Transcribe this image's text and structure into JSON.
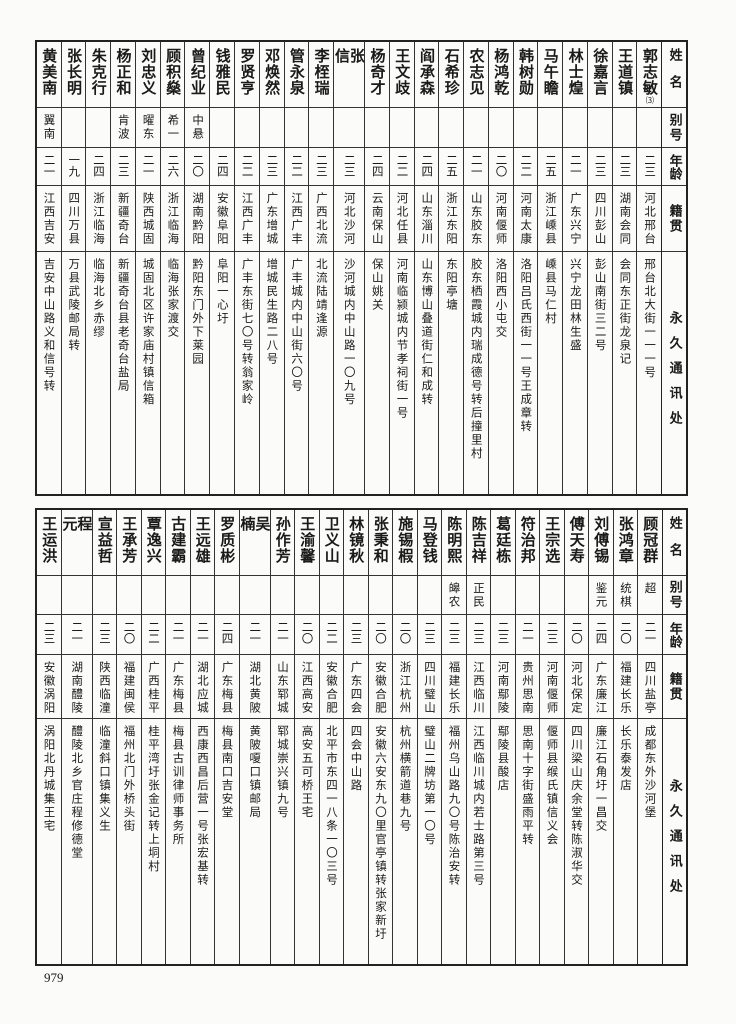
{
  "headers": {
    "name": "姓名",
    "alias": "别号",
    "age": "年龄",
    "origin": "籍贯",
    "address": "永久通讯处"
  },
  "top": [
    {
      "name": "郭志敏",
      "note": "⑶",
      "alias": "",
      "age": "二三",
      "origin": "河北邢台",
      "address": "邢台北大街一一一号"
    },
    {
      "name": "王道镇",
      "alias": "",
      "age": "二三",
      "origin": "湖南会同",
      "address": "会同东正街龙泉记"
    },
    {
      "name": "徐嘉言",
      "alias": "",
      "age": "二三",
      "origin": "四川彭山",
      "address": "彭山南街三二号"
    },
    {
      "name": "林士煌",
      "alias": "",
      "age": "二一",
      "origin": "广东兴宁",
      "address": "兴宁龙田林生盛"
    },
    {
      "name": "马午瞻",
      "alias": "",
      "age": "二五",
      "origin": "浙江嵊县",
      "address": "嵊县马仁村"
    },
    {
      "name": "韩树勋",
      "alias": "",
      "age": "二二",
      "origin": "河南太康",
      "address": "洛阳吕氏西街一一号王成章转"
    },
    {
      "name": "杨鸿乾",
      "alias": "",
      "age": "二〇",
      "origin": "河南偃师",
      "address": "洛阳西小屯交"
    },
    {
      "name": "农志见",
      "alias": "",
      "age": "二一",
      "origin": "山东胶东",
      "address": "胶东栖霞城内瑞成德号转后撞里村"
    },
    {
      "name": "石希珍",
      "alias": "",
      "age": "二五",
      "origin": "浙江东阳",
      "address": "东阳亭塘"
    },
    {
      "name": "阎承森",
      "alias": "",
      "age": "二四",
      "origin": "山东淄川",
      "address": "山东博山叠道街仁和成转"
    },
    {
      "name": "王文歧",
      "alias": "",
      "age": "二二",
      "origin": "河北任县",
      "address": "河南临颍城内节孝祠街一号"
    },
    {
      "name": "杨奇才",
      "alias": "",
      "age": "二四",
      "origin": "云南保山",
      "address": "保山姚关"
    },
    {
      "name": "张信",
      "alias": "",
      "age": "二三",
      "origin": "河北沙河",
      "address": "沙河城内中山路一〇九号"
    },
    {
      "name": "李桎瑞",
      "alias": "",
      "age": "二三",
      "origin": "广西北流",
      "address": "北流陆靖逢源"
    },
    {
      "name": "管永泉",
      "alias": "",
      "age": "二二",
      "origin": "江西广丰",
      "address": "广丰城内中山街六〇号"
    },
    {
      "name": "邓焕然",
      "alias": "",
      "age": "二三",
      "origin": "广东增城",
      "address": "增城民生路二八号"
    },
    {
      "name": "罗贤亨",
      "alias": "",
      "age": "二二",
      "origin": "江西广丰",
      "address": "广丰东街七〇号转翁家岭"
    },
    {
      "name": "钱雅民",
      "alias": "",
      "age": "二四",
      "origin": "安徽阜阳",
      "address": "阜阳一心圩"
    },
    {
      "name": "曾纪业",
      "alias": "中悬",
      "age": "二〇",
      "origin": "湖南黔阳",
      "address": "黔阳东门外下莱园"
    },
    {
      "name": "顾积燊",
      "alias": "希一",
      "age": "二六",
      "origin": "浙江临海",
      "address": "临海张家渡交"
    },
    {
      "name": "刘忠义",
      "alias": "曜东",
      "age": "二一",
      "origin": "陕西城固",
      "address": "城固北区许家庙村镇信箱"
    },
    {
      "name": "杨正和",
      "alias": "肯波",
      "age": "二三",
      "origin": "新疆奇台",
      "address": "新疆奇台县老奇台盐局"
    },
    {
      "name": "朱克行",
      "alias": "",
      "age": "二四",
      "origin": "浙江临海",
      "address": "临海北乡赤缪"
    },
    {
      "name": "张长明",
      "alias": "",
      "age": "一九",
      "origin": "四川万县",
      "address": "万县武陵邮局转"
    },
    {
      "name": "黄美南",
      "alias": "翼南",
      "age": "二一",
      "origin": "江西吉安",
      "address": "吉安中山路义和信号转"
    }
  ],
  "bottom": [
    {
      "name": "顾冠群",
      "alias": "超",
      "age": "二一",
      "origin": "四川盐亭",
      "address": "成都东外沙河堡"
    },
    {
      "name": "张鸿章",
      "alias": "统棋",
      "age": "二〇",
      "origin": "福建长乐",
      "address": "长乐泰发店"
    },
    {
      "name": "刘傅锡",
      "alias": "鉴元",
      "age": "二四",
      "origin": "广东廉江",
      "address": "廉江石角圩一昌交"
    },
    {
      "name": "傅天寿",
      "alias": "",
      "age": "二〇",
      "origin": "河北保定",
      "address": "四川梁山庆余堂转陈淑华交"
    },
    {
      "name": "王宗选",
      "alias": "",
      "age": "二三",
      "origin": "河南偃师",
      "address": "偃师县缑氏镇信义会"
    },
    {
      "name": "符治邦",
      "alias": "",
      "age": "二一",
      "origin": "贵州思南",
      "address": "思南十字街盛雨平转"
    },
    {
      "name": "葛廷栋",
      "alias": "",
      "age": "二三",
      "origin": "河南鄢陵",
      "address": "鄢陵县酸店"
    },
    {
      "name": "陈吉祥",
      "alias": "正民",
      "age": "二三",
      "origin": "江西临川",
      "address": "江西临川城内若士路第三号"
    },
    {
      "name": "陈明熙",
      "alias": "皞农",
      "age": "二三",
      "origin": "福建长乐",
      "address": "福州乌山路九〇号陈治安转"
    },
    {
      "name": "马登钱",
      "alias": "",
      "age": "二三",
      "origin": "四川璧山",
      "address": "璧山二牌坊第一〇号"
    },
    {
      "name": "施锡椵",
      "alias": "",
      "age": "二〇",
      "origin": "浙江杭州",
      "address": "杭州横箭道巷九号"
    },
    {
      "name": "张秉和",
      "alias": "",
      "age": "二〇",
      "origin": "安徽合肥",
      "address": "安徽六安东九〇里官亭镇转张家新圩"
    },
    {
      "name": "林镜秋",
      "alias": "",
      "age": "二三",
      "origin": "广东四会",
      "address": "四会中山路"
    },
    {
      "name": "卫义山",
      "alias": "",
      "age": "二二",
      "origin": "安徽合肥",
      "address": "北平市东四一八条一〇三号"
    },
    {
      "name": "王渝馨",
      "alias": "",
      "age": "二〇",
      "origin": "江西高安",
      "address": "高安五可桥王宅"
    },
    {
      "name": "孙作芳",
      "alias": "",
      "age": "二一",
      "origin": "山东郓城",
      "address": "郓城崇兴镇九号"
    },
    {
      "name": "吴楠",
      "alias": "",
      "age": "二一",
      "origin": "湖北黄陂",
      "address": "黄陂嗄口镇邮局"
    },
    {
      "name": "罗质彬",
      "alias": "",
      "age": "二四",
      "origin": "广东梅县",
      "address": "梅县南口吉安堂"
    },
    {
      "name": "王远雄",
      "alias": "",
      "age": "二一",
      "origin": "湖北应城",
      "address": "西康西昌后营一号张宏基转"
    },
    {
      "name": "古建霸",
      "alias": "",
      "age": "二一",
      "origin": "广东梅县",
      "address": "梅县古训律师事务所"
    },
    {
      "name": "覃逸兴",
      "alias": "",
      "age": "二二",
      "origin": "广西桂平",
      "address": "桂平湾圩张金记转上垌村"
    },
    {
      "name": "王承芳",
      "alias": "",
      "age": "二〇",
      "origin": "福建闽侯",
      "address": "福州北门外桥头街"
    },
    {
      "name": "宣益哲",
      "alias": "",
      "age": "二三",
      "origin": "陕西临潼",
      "address": "临潼斜口镇集义生"
    },
    {
      "name": "程元",
      "alias": "",
      "age": "二一",
      "origin": "湖南醴陵",
      "address": "醴陵北乡官庄程修德堂"
    },
    {
      "name": "王运洪",
      "alias": "",
      "age": "二三",
      "origin": "安徽涡阳",
      "address": "涡阳北丹城集王宅"
    }
  ],
  "page_number": "979"
}
